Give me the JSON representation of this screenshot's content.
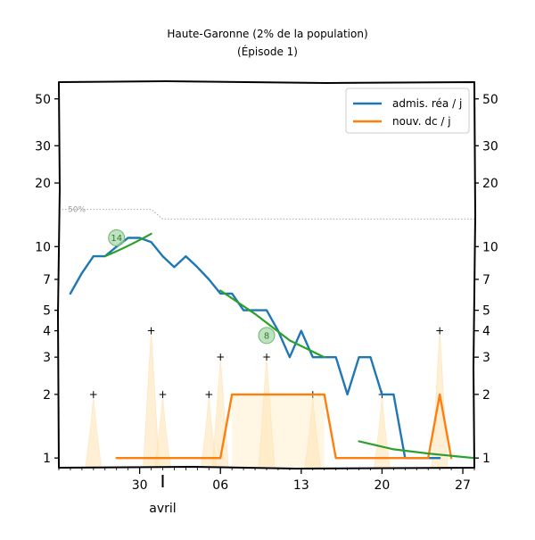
{
  "chart_data": {
    "type": "line",
    "title": "Haute-Garonne (2% de la population)",
    "subtitle": "(Épisode 1)",
    "xlabel": "",
    "ylabel": "",
    "y_scale": "log",
    "ylim": [
      0.9,
      60
    ],
    "xlim": [
      "2020-03-23",
      "2020-04-28"
    ],
    "y_ticks": [
      1,
      2,
      3,
      4,
      5,
      7,
      10,
      20,
      30,
      50
    ],
    "y_tick_labels": [
      "1",
      "2",
      "3",
      "4",
      "5",
      "7",
      "10",
      "20",
      "30",
      "50"
    ],
    "x_ticks": [
      "2020-03-30",
      "2020-04-06",
      "2020-04-13",
      "2020-04-20",
      "2020-04-27"
    ],
    "x_tick_labels": [
      "30",
      "06",
      "13",
      "20",
      "27"
    ],
    "x_month_label": "avril",
    "grid": false,
    "legend": {
      "position": "top-right",
      "entries": [
        "admis. réa / j",
        "nouv. dc / j"
      ]
    },
    "series": [
      {
        "name": "admis. réa / j",
        "color": "#1f77b4",
        "points": [
          [
            "2020-03-24",
            6
          ],
          [
            "2020-03-25",
            7.5
          ],
          [
            "2020-03-26",
            9
          ],
          [
            "2020-03-27",
            9
          ],
          [
            "2020-03-28",
            10
          ],
          [
            "2020-03-29",
            11
          ],
          [
            "2020-03-30",
            11
          ],
          [
            "2020-03-31",
            10.5
          ],
          [
            "2020-04-01",
            9
          ],
          [
            "2020-04-02",
            8
          ],
          [
            "2020-04-03",
            9
          ],
          [
            "2020-04-04",
            8
          ],
          [
            "2020-04-05",
            7
          ],
          [
            "2020-04-06",
            6
          ],
          [
            "2020-04-07",
            6
          ],
          [
            "2020-04-08",
            5
          ],
          [
            "2020-04-09",
            5
          ],
          [
            "2020-04-10",
            5
          ],
          [
            "2020-04-11",
            4
          ],
          [
            "2020-04-12",
            3
          ],
          [
            "2020-04-13",
            4
          ],
          [
            "2020-04-14",
            3
          ],
          [
            "2020-04-15",
            3
          ],
          [
            "2020-04-16",
            3
          ],
          [
            "2020-04-17",
            2
          ],
          [
            "2020-04-18",
            3
          ],
          [
            "2020-04-19",
            3
          ],
          [
            "2020-04-20",
            2
          ],
          [
            "2020-04-21",
            2
          ],
          [
            "2020-04-22",
            1
          ],
          [
            "2020-04-23",
            1
          ],
          [
            "2020-04-24",
            1
          ],
          [
            "2020-04-25",
            1
          ]
        ]
      },
      {
        "name": "nouv. dc / j",
        "color": "#ff7f0e",
        "points": [
          [
            "2020-03-28",
            1
          ],
          [
            "2020-03-29",
            1
          ],
          [
            "2020-03-30",
            1
          ],
          [
            "2020-03-31",
            1
          ],
          [
            "2020-04-01",
            1
          ],
          [
            "2020-04-02",
            1
          ],
          [
            "2020-04-03",
            1
          ],
          [
            "2020-04-04",
            1
          ],
          [
            "2020-04-05",
            1
          ],
          [
            "2020-04-06",
            1
          ],
          [
            "2020-04-07",
            2
          ],
          [
            "2020-04-08",
            2
          ],
          [
            "2020-04-09",
            2
          ],
          [
            "2020-04-10",
            2
          ],
          [
            "2020-04-11",
            2
          ],
          [
            "2020-04-12",
            2
          ],
          [
            "2020-04-13",
            2
          ],
          [
            "2020-04-14",
            2
          ],
          [
            "2020-04-15",
            2
          ],
          [
            "2020-04-16",
            1
          ],
          [
            "2020-04-17",
            1
          ],
          [
            "2020-04-18",
            1
          ],
          [
            "2020-04-19",
            1
          ],
          [
            "2020-04-20",
            1
          ],
          [
            "2020-04-21",
            1
          ],
          [
            "2020-04-22",
            1
          ],
          [
            "2020-04-23",
            1
          ],
          [
            "2020-04-24",
            1
          ],
          [
            "2020-04-25",
            2
          ],
          [
            "2020-04-26",
            1
          ]
        ]
      }
    ],
    "trend_lines": [
      {
        "color": "#2ca02c",
        "points": [
          [
            "2020-03-27",
            9
          ],
          [
            "2020-03-29",
            10
          ],
          [
            "2020-03-31",
            11.5
          ]
        ]
      },
      {
        "color": "#2ca02c",
        "points": [
          [
            "2020-04-06",
            6.2
          ],
          [
            "2020-04-09",
            4.8
          ],
          [
            "2020-04-12",
            3.6
          ],
          [
            "2020-04-15",
            3
          ]
        ]
      },
      {
        "color": "#2ca02c",
        "points": [
          [
            "2020-04-18",
            1.2
          ],
          [
            "2020-04-21",
            1.1
          ],
          [
            "2020-04-24",
            1.05
          ],
          [
            "2020-04-28",
            1
          ]
        ]
      }
    ],
    "doubling_annotations": [
      {
        "label": "14",
        "x": "2020-03-28",
        "y": 11
      },
      {
        "label": "8",
        "x": "2020-04-10",
        "y": 3.8
      }
    ],
    "reference_line": {
      "label": "50%",
      "color": "#aaaaaa",
      "points": [
        [
          "2020-03-23",
          15
        ],
        [
          "2020-03-31",
          15
        ],
        [
          "2020-04-01",
          13.5
        ],
        [
          "2020-04-28",
          13.5
        ]
      ]
    },
    "background_spikes": {
      "color": "#ffe4b3",
      "marker_color": "#ffcc88",
      "points": [
        [
          "2020-03-26",
          2
        ],
        [
          "2020-03-31",
          4
        ],
        [
          "2020-04-01",
          2
        ],
        [
          "2020-04-05",
          2
        ],
        [
          "2020-04-06",
          3
        ],
        [
          "2020-04-10",
          3
        ],
        [
          "2020-04-14",
          2
        ],
        [
          "2020-04-20",
          2
        ],
        [
          "2020-04-25",
          4
        ]
      ]
    }
  }
}
